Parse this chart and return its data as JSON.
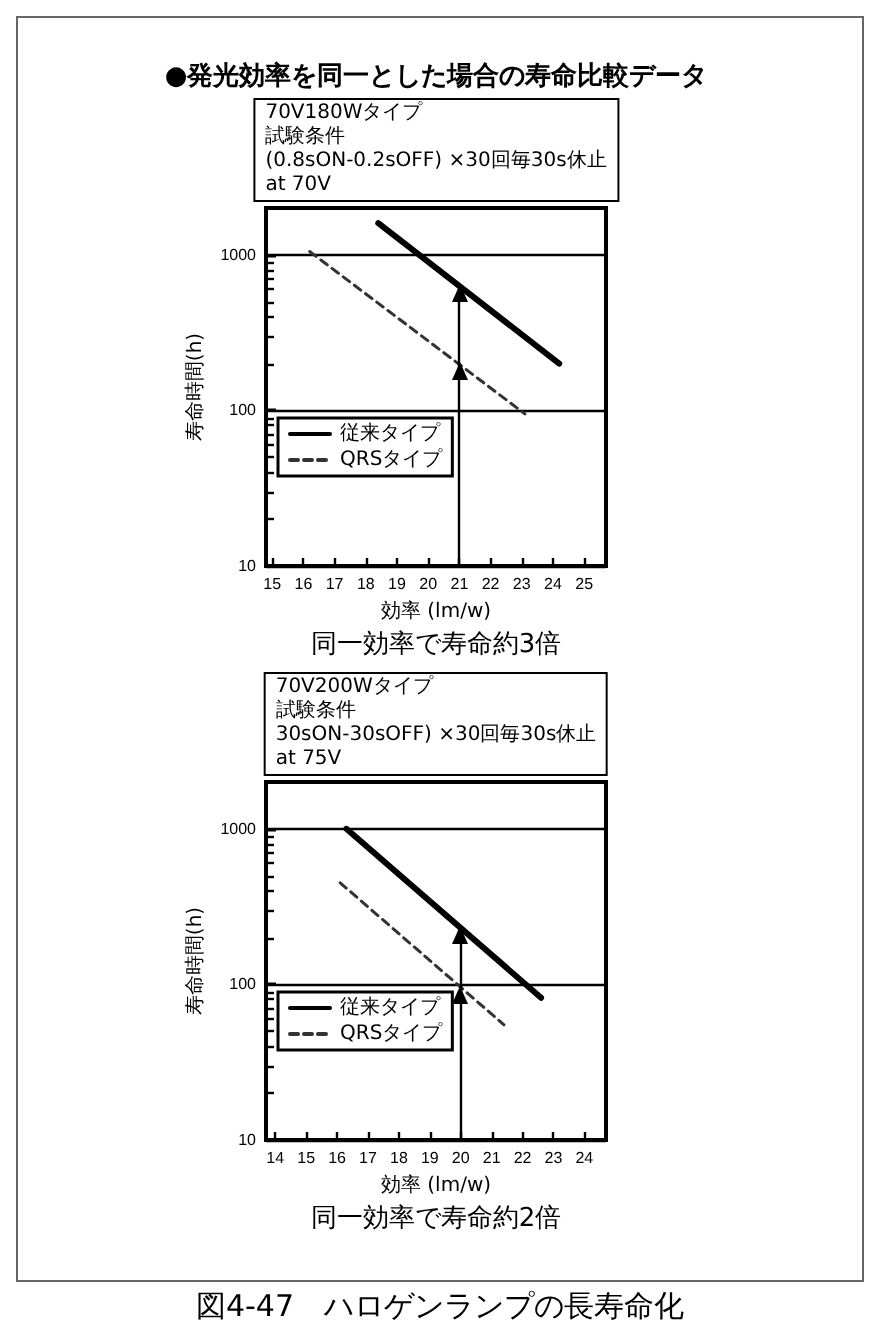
{
  "chart_data": [
    {
      "type": "line",
      "title": "●発光効率を同一とした場合の寿命比較データ",
      "subtitle": "同一効率で寿命約3倍",
      "xlabel": "効率 (lm/w)",
      "ylabel": "寿命時間(h)",
      "annotations": [
        "70V180Wタイプ",
        "試験条件",
        "(0.8sON-0.2sOFF) ×30回毎30s休止",
        "at 70V"
      ],
      "series": [
        {
          "name": "従来タイプ",
          "color": "#000000",
          "line_style": "solid",
          "x": [
            18.4,
            24.2
          ],
          "values": [
            1600,
            200
          ]
        },
        {
          "name": "QRSタイプ",
          "color": "#333333",
          "line_style": "dashed",
          "x": [
            16.2,
            23.1
          ],
          "values": [
            1050,
            95
          ]
        }
      ],
      "xlim": [
        14.8,
        25.7
      ],
      "xticks": [
        15,
        16,
        17,
        18,
        19,
        20,
        21,
        22,
        23,
        24,
        25
      ],
      "ylim": [
        10,
        2000
      ],
      "yticks": [
        10,
        {
          "value": 20,
          "label": null
        },
        {
          "value": 30,
          "label": null
        },
        {
          "value": 40,
          "label": null
        },
        {
          "value": 50,
          "label": null
        },
        {
          "value": 60,
          "label": null
        },
        {
          "value": 70,
          "label": null
        },
        {
          "value": 80,
          "label": null
        },
        {
          "value": 90,
          "label": null
        },
        100,
        {
          "value": 200,
          "label": null
        },
        {
          "value": 300,
          "label": null
        },
        {
          "value": 400,
          "label": null
        },
        {
          "value": 500,
          "label": null
        },
        {
          "value": 600,
          "label": null
        },
        {
          "value": 700,
          "label": null
        },
        {
          "value": 800,
          "label": null
        },
        {
          "value": 900,
          "label": null
        },
        1000
      ],
      "log": "y",
      "grid": "y",
      "legend": "left",
      "marker": "none",
      "ref_lines": [
        {
          "axis": "x",
          "value": 21
        }
      ]
    },
    {
      "type": "line",
      "title": "図4-47　ハロゲンランプの長寿命化",
      "subtitle": "同一効率で寿命約2倍",
      "xlabel": "効率 (lm/w)",
      "ylabel": "寿命時間(h)",
      "annotations": [
        "70V200Wタイプ",
        "試験条件",
        "30sON-30sOFF) ×30回毎30s休止",
        "at 75V"
      ],
      "series": [
        {
          "name": "従来タイプ",
          "color": "#000000",
          "line_style": "solid",
          "x": [
            16.3,
            22.6
          ],
          "values": [
            1000,
            82
          ]
        },
        {
          "name": "QRSタイプ",
          "color": "#333333",
          "line_style": "dashed",
          "x": [
            16.1,
            21.4
          ],
          "values": [
            450,
            55
          ]
        }
      ],
      "xlim": [
        13.7,
        24.7
      ],
      "xticks": [
        14,
        15,
        16,
        17,
        18,
        19,
        20,
        21,
        22,
        23,
        24
      ],
      "ylim": [
        10,
        2000
      ],
      "yticks": [
        10,
        {
          "value": 20,
          "label": null
        },
        {
          "value": 30,
          "label": null
        },
        {
          "value": 40,
          "label": null
        },
        {
          "value": 50,
          "label": null
        },
        {
          "value": 60,
          "label": null
        },
        {
          "value": 70,
          "label": null
        },
        {
          "value": 80,
          "label": null
        },
        {
          "value": 90,
          "label": null
        },
        100,
        {
          "value": 200,
          "label": null
        },
        {
          "value": 300,
          "label": null
        },
        {
          "value": 400,
          "label": null
        },
        {
          "value": 500,
          "label": null
        },
        {
          "value": 600,
          "label": null
        },
        {
          "value": 700,
          "label": null
        },
        {
          "value": 800,
          "label": null
        },
        {
          "value": 900,
          "label": null
        },
        1000
      ],
      "log": "y",
      "grid": "y",
      "legend": "left",
      "marker": "none",
      "ref_lines": [
        {
          "axis": "x",
          "value": 20
        }
      ]
    }
  ]
}
